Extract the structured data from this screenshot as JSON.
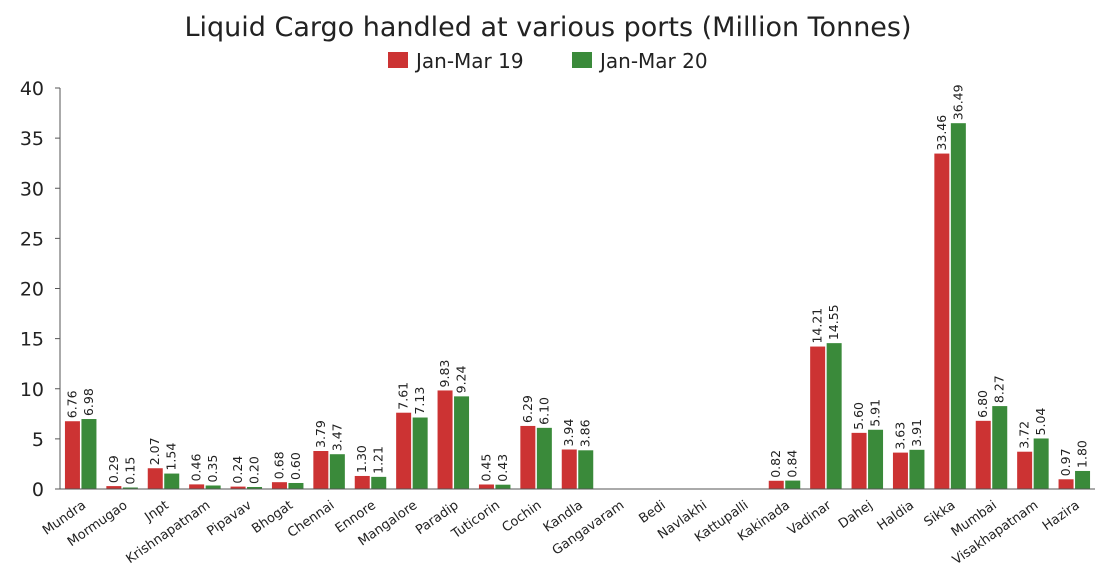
{
  "chart_data": {
    "type": "bar",
    "title": "Liquid Cargo handled at various ports (Million Tonnes)",
    "xlabel": "",
    "ylabel": "",
    "ylim": [
      0,
      40
    ],
    "yticks": [
      0,
      5,
      10,
      15,
      20,
      25,
      30,
      35,
      40
    ],
    "grid": false,
    "legend_position": "top-center",
    "categories": [
      "Mundra",
      "Mormugao",
      "Jnpt",
      "Krishnapatnam",
      "Pipavav",
      "Bhogat",
      "Chennai",
      "Ennore",
      "Mangalore",
      "Paradip",
      "Tuticorin",
      "Cochin",
      "Kandla",
      "Gangavaram",
      "Bedi",
      "Navlakhi",
      "Kattupalli",
      "Kakinada",
      "Vadinar",
      "Dahej",
      "Haldia",
      "Sikka",
      "Mumbai",
      "Visakhapatnam",
      "Hazira"
    ],
    "series": [
      {
        "name": "Jan-Mar 19",
        "color": "#cc3333",
        "values": [
          6.76,
          0.29,
          2.07,
          0.46,
          0.24,
          0.68,
          3.79,
          1.3,
          7.61,
          9.83,
          0.45,
          6.29,
          3.94,
          null,
          null,
          null,
          null,
          0.82,
          14.21,
          5.6,
          3.63,
          33.46,
          6.8,
          3.72,
          0.97
        ],
        "labels": [
          "6.76",
          "0.29",
          "2.07",
          "0.46",
          "0.24",
          "0.68",
          "3.79",
          "1.30",
          "7.61",
          "9.83",
          "0.45",
          "6.29",
          "3.94",
          "",
          "",
          "",
          "",
          "0.82",
          "14.21",
          "5.60",
          "3.63",
          "33.46",
          "6.80",
          "3.72",
          "0.97"
        ]
      },
      {
        "name": "Jan-Mar 20",
        "color": "#3a8a3a",
        "values": [
          6.98,
          0.15,
          1.54,
          0.35,
          0.2,
          0.6,
          3.47,
          1.21,
          7.13,
          9.24,
          0.43,
          6.1,
          3.86,
          null,
          null,
          null,
          null,
          0.84,
          14.55,
          5.91,
          3.91,
          36.49,
          8.27,
          5.04,
          1.8
        ],
        "labels": [
          "6.98",
          "0.15",
          "1.54",
          "0.35",
          "0.20",
          "0.60",
          "3.47",
          "1.21",
          "7.13",
          "9.24",
          "0.43",
          "6.10",
          "3.86",
          "",
          "",
          "",
          "",
          "0.84",
          "14.55",
          "5.91",
          "3.91",
          "36.49",
          "8.27",
          "5.04",
          "1.80"
        ]
      }
    ]
  }
}
